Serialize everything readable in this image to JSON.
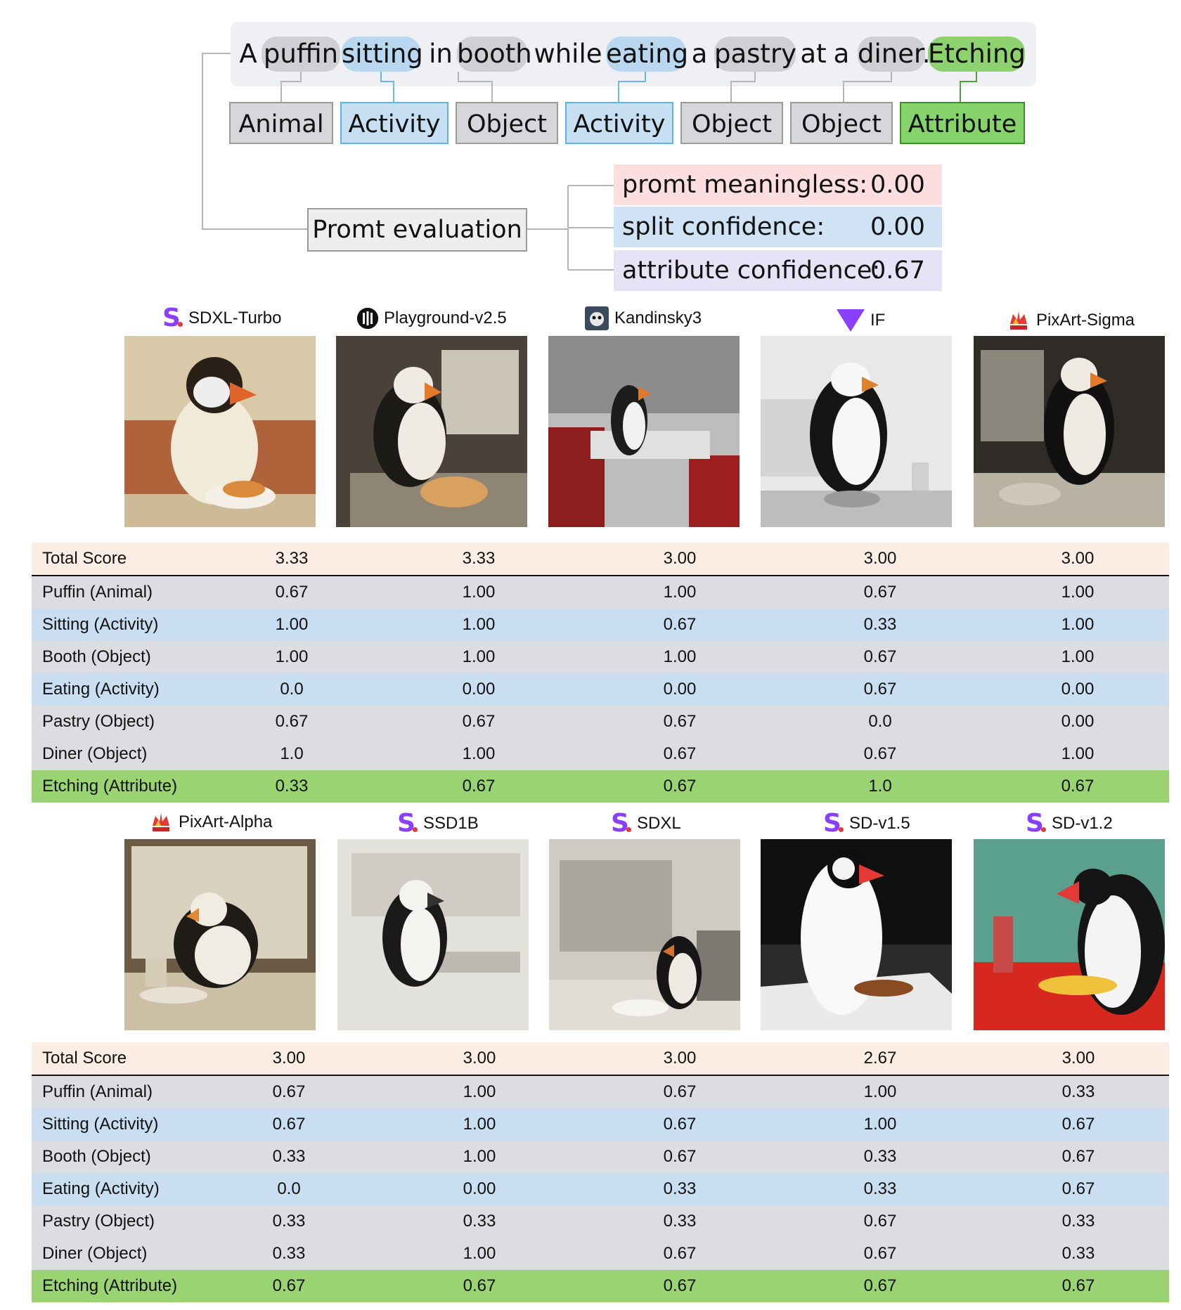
{
  "prompt": {
    "tokens": [
      {
        "text": "A",
        "kind": "plain"
      },
      {
        "text": "puffin",
        "kind": "gray"
      },
      {
        "text": "sitting",
        "kind": "blue"
      },
      {
        "text": "in",
        "kind": "plain"
      },
      {
        "text": "booth",
        "kind": "gray"
      },
      {
        "text": "while",
        "kind": "plain"
      },
      {
        "text": "eating",
        "kind": "blue"
      },
      {
        "text": "a",
        "kind": "plain"
      },
      {
        "text": "pastry",
        "kind": "gray"
      },
      {
        "text": "at",
        "kind": "plain"
      },
      {
        "text": "a",
        "kind": "plain"
      },
      {
        "text": "diner.",
        "kind": "gray"
      },
      {
        "text": "Etching",
        "kind": "green"
      }
    ],
    "categories": [
      "Animal",
      "Activity",
      "Object",
      "Activity",
      "Object",
      "Object",
      "Attribute"
    ]
  },
  "evaluation": {
    "label": "Promt evaluation",
    "metrics": [
      {
        "name": "promt meaningless:",
        "value": "0.00"
      },
      {
        "name": "split confidence:",
        "value": "0.00"
      },
      {
        "name": "attribute confidence:",
        "value": "0.67"
      }
    ]
  },
  "row_labels": [
    "Total Score",
    "Puffin (Animal)",
    "Sitting (Activity)",
    "Booth (Object)",
    "Eating (Activity)",
    "Pastry (Object)",
    "Diner (Object)",
    "Etching (Attribute)"
  ],
  "groups": [
    {
      "models": [
        {
          "name": "SDXL-Turbo",
          "logo": "stability-s-logo"
        },
        {
          "name": "Playground-v2.5",
          "logo": "playground-logo"
        },
        {
          "name": "Kandinsky3",
          "logo": "kandinsky-logo"
        },
        {
          "name": "IF",
          "logo": "deepfloyd-if-logo"
        },
        {
          "name": "PixArt-Sigma",
          "logo": "pixart-logo"
        }
      ],
      "scores": [
        [
          "3.33",
          "3.33",
          "3.00",
          "3.00",
          "3.00"
        ],
        [
          "0.67",
          "1.00",
          "1.00",
          "0.67",
          "1.00"
        ],
        [
          "1.00",
          "1.00",
          "0.67",
          "0.33",
          "1.00"
        ],
        [
          "1.00",
          "1.00",
          "1.00",
          "0.67",
          "1.00"
        ],
        [
          "0.0",
          "0.00",
          "0.00",
          "0.67",
          "0.00"
        ],
        [
          "0.67",
          "0.67",
          "0.67",
          "0.0",
          "0.00"
        ],
        [
          "1.0",
          "1.00",
          "0.67",
          "0.67",
          "1.00"
        ],
        [
          "0.33",
          "0.67",
          "0.67",
          "1.0",
          "0.67"
        ]
      ]
    },
    {
      "models": [
        {
          "name": "PixArt-Alpha",
          "logo": "pixart-logo"
        },
        {
          "name": "SSD1B",
          "logo": "stability-s-logo"
        },
        {
          "name": "SDXL",
          "logo": "stability-s-logo"
        },
        {
          "name": "SD-v1.5",
          "logo": "stability-s-logo"
        },
        {
          "name": "SD-v1.2",
          "logo": "stability-s-logo"
        }
      ],
      "scores": [
        [
          "3.00",
          "3.00",
          "3.00",
          "2.67",
          "3.00"
        ],
        [
          "0.67",
          "1.00",
          "0.67",
          "1.00",
          "0.33"
        ],
        [
          "0.67",
          "1.00",
          "0.67",
          "1.00",
          "0.67"
        ],
        [
          "0.33",
          "1.00",
          "0.67",
          "0.33",
          "0.67"
        ],
        [
          "0.0",
          "0.00",
          "0.33",
          "0.33",
          "0.67"
        ],
        [
          "0.33",
          "0.33",
          "0.33",
          "0.67",
          "0.33"
        ],
        [
          "0.33",
          "1.00",
          "0.67",
          "0.67",
          "0.33"
        ],
        [
          "0.67",
          "0.67",
          "0.67",
          "0.67",
          "0.67"
        ]
      ]
    }
  ],
  "colors": {
    "animal_object": "#d6d7da",
    "activity": "#c6dff2",
    "attribute": "#86d36b",
    "total": "#fbede3"
  }
}
